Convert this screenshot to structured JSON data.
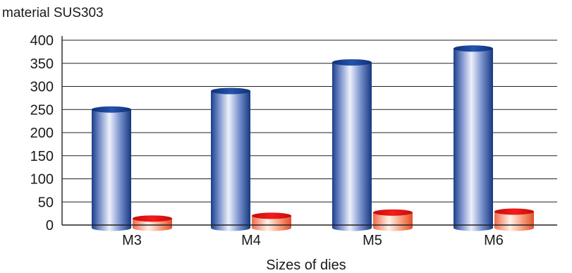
{
  "chart_data": {
    "type": "bar",
    "style": "3d-cylinder",
    "title": "material SUS303",
    "xlabel": "Sizes of dies",
    "ylabel": "",
    "ylim": [
      0,
      400
    ],
    "yticks": [
      0,
      50,
      100,
      150,
      200,
      250,
      300,
      350,
      400
    ],
    "grid": true,
    "legend": "none",
    "categories": [
      "M3",
      "M4",
      "M5",
      "M6"
    ],
    "series": [
      {
        "values": [
          250,
          290,
          352,
          382
        ],
        "color": "#1f4fa0"
      },
      {
        "values": [
          14,
          20,
          27,
          29
        ],
        "color": "#e01515"
      }
    ]
  }
}
